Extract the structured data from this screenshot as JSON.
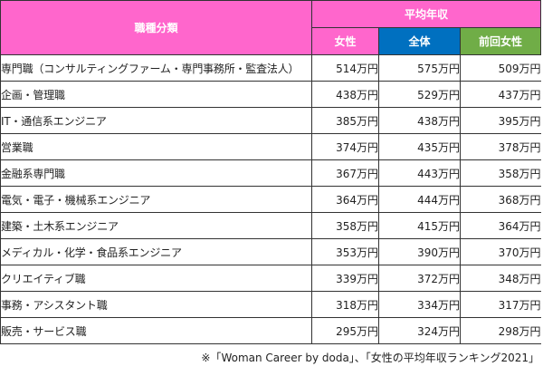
{
  "header": {
    "category_label": "職種分類",
    "group_label": "平均年収",
    "columns": [
      {
        "label": "女性",
        "color": "#ff66cc"
      },
      {
        "label": "全体",
        "color": "#0070c0"
      },
      {
        "label": "前回女性",
        "color": "#70ad47"
      }
    ]
  },
  "rows": [
    {
      "category": "専門職（コンサルティングファーム・専門事務所・監査法人）",
      "female": "514万円",
      "overall": "575万円",
      "prev_female": "509万円"
    },
    {
      "category": "企画・管理職",
      "female": "438万円",
      "overall": "529万円",
      "prev_female": "437万円"
    },
    {
      "category": "IT・通信系エンジニア",
      "female": "385万円",
      "overall": "438万円",
      "prev_female": "395万円"
    },
    {
      "category": "営業職",
      "female": "374万円",
      "overall": "435万円",
      "prev_female": "378万円"
    },
    {
      "category": "金融系専門職",
      "female": "367万円",
      "overall": "443万円",
      "prev_female": "358万円"
    },
    {
      "category": "電気・電子・機械系エンジニア",
      "female": "364万円",
      "overall": "444万円",
      "prev_female": "368万円"
    },
    {
      "category": "建築・土木系エンジニア",
      "female": "358万円",
      "overall": "415万円",
      "prev_female": "364万円"
    },
    {
      "category": "メディカル・化学・食品系エンジニア",
      "female": "353万円",
      "overall": "390万円",
      "prev_female": "370万円"
    },
    {
      "category": "クリエイティブ職",
      "female": "339万円",
      "overall": "372万円",
      "prev_female": "348万円"
    },
    {
      "category": "事務・アシスタント職",
      "female": "318万円",
      "overall": "334万円",
      "prev_female": "317万円"
    },
    {
      "category": "販売・サービス職",
      "female": "295万円",
      "overall": "324万円",
      "prev_female": "298万円"
    }
  ],
  "footer": {
    "source": "※「Woman Career by doda」、「女性の平均年収ランキング2021」"
  }
}
